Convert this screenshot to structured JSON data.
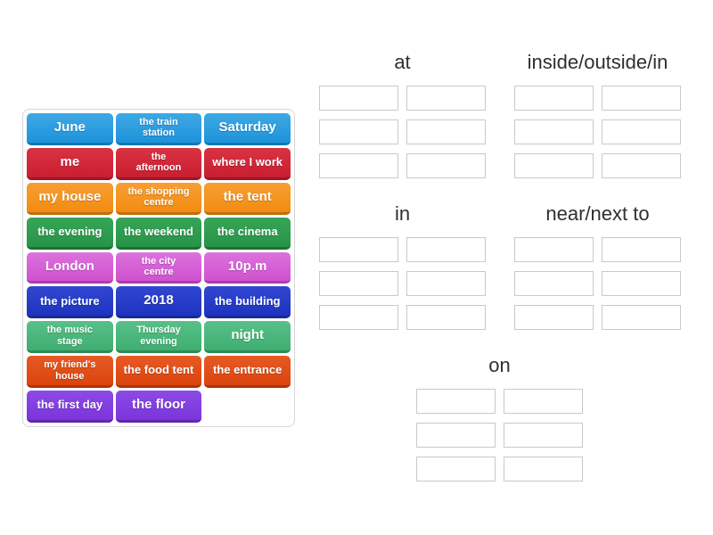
{
  "word_bank": {
    "tiles": [
      {
        "label": "June",
        "color": "blue"
      },
      {
        "label": "the train station",
        "color": "blue",
        "wrap": true
      },
      {
        "label": "Saturday",
        "color": "blue"
      },
      {
        "label": "me",
        "color": "red"
      },
      {
        "label": "the afternoon",
        "color": "red",
        "wrap": true
      },
      {
        "label": "where I work",
        "color": "red"
      },
      {
        "label": "my house",
        "color": "orange"
      },
      {
        "label": "the shopping centre",
        "color": "orange",
        "wrap": true
      },
      {
        "label": "the tent",
        "color": "orange"
      },
      {
        "label": "the evening",
        "color": "green"
      },
      {
        "label": "the weekend",
        "color": "green"
      },
      {
        "label": "the cinema",
        "color": "green"
      },
      {
        "label": "London",
        "color": "orchid"
      },
      {
        "label": "the city centre",
        "color": "orchid",
        "wrap": true
      },
      {
        "label": "10p.m",
        "color": "orchid"
      },
      {
        "label": "the picture",
        "color": "royalblue"
      },
      {
        "label": "2018",
        "color": "royalblue"
      },
      {
        "label": "the building",
        "color": "royalblue"
      },
      {
        "label": "the music stage",
        "color": "emerald",
        "wrap": true
      },
      {
        "label": "Thursday evening",
        "color": "emerald",
        "wrap": true
      },
      {
        "label": "night",
        "color": "emerald"
      },
      {
        "label": "my friend's house",
        "color": "vermillion",
        "wrap": true
      },
      {
        "label": "the food tent",
        "color": "vermillion"
      },
      {
        "label": "the entrance",
        "color": "vermillion"
      },
      {
        "label": "the first day",
        "color": "violet"
      },
      {
        "label": "the floor",
        "color": "violet"
      }
    ],
    "tile_colors": {
      "blue": {
        "top": "#3ea8e5",
        "bottom": "#1e93da",
        "edge": "#1477b5"
      },
      "red": {
        "top": "#d93343",
        "bottom": "#c91e30",
        "edge": "#9c1724"
      },
      "orange": {
        "top": "#f89e33",
        "bottom": "#f18c12",
        "edge": "#c06d0e"
      },
      "green": {
        "top": "#37a557",
        "bottom": "#279347",
        "edge": "#1d7036"
      },
      "orchid": {
        "top": "#dd72dd",
        "bottom": "#cf52cf",
        "edge": "#a840a8"
      },
      "royalblue": {
        "top": "#3147d1",
        "bottom": "#1e34c0",
        "edge": "#182a92"
      },
      "emerald": {
        "top": "#58c089",
        "bottom": "#3fae70",
        "edge": "#2f8a58"
      },
      "vermillion": {
        "top": "#e65a24",
        "bottom": "#dc440e",
        "edge": "#ab350b"
      },
      "violet": {
        "top": "#8c4ae5",
        "bottom": "#7b35dc",
        "edge": "#5f28ae"
      }
    }
  },
  "groups": [
    {
      "id": "at",
      "label": "at",
      "slot_count": 6
    },
    {
      "id": "inside-outside-in",
      "label": "inside/outside/in",
      "slot_count": 6
    },
    {
      "id": "in",
      "label": "in",
      "slot_count": 6
    },
    {
      "id": "near-next-to",
      "label": "near/next to",
      "slot_count": 6
    },
    {
      "id": "on",
      "label": "on",
      "slot_count": 6
    }
  ],
  "colors": {
    "page_background": "#ffffff",
    "header_text": "#2f2f2f",
    "slot_border": "#c9c9c9",
    "bank_border": "#d7d7d7"
  }
}
